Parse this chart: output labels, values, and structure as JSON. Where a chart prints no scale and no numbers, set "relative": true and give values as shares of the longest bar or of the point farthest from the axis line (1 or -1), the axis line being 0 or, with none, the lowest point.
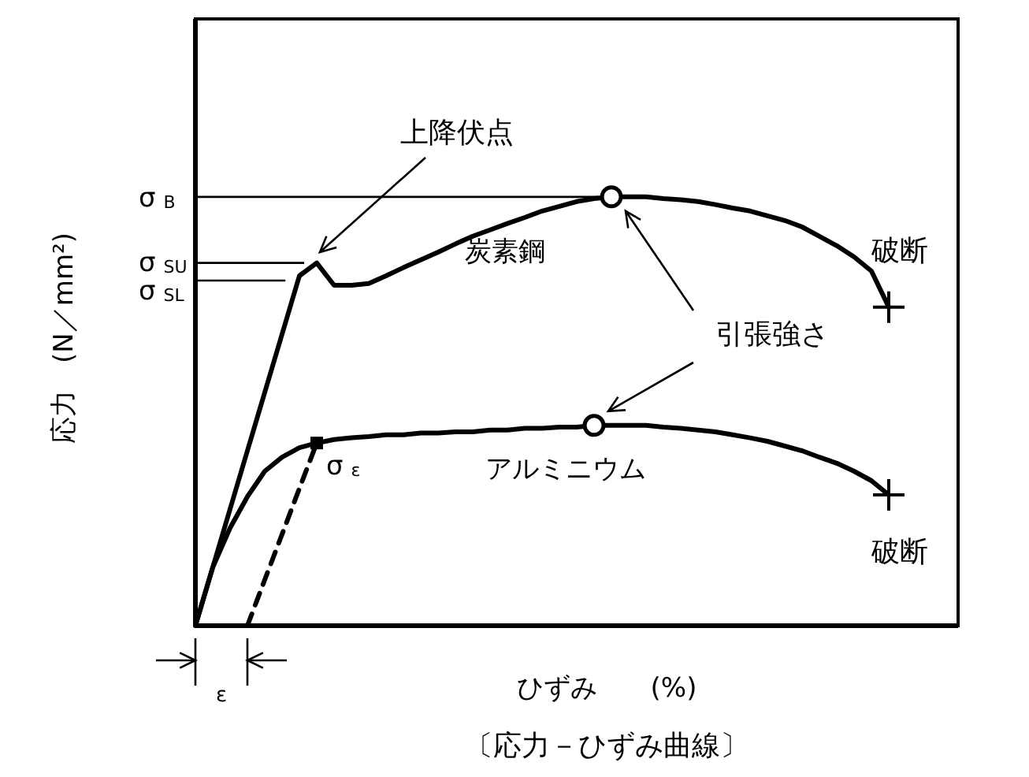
{
  "chart_data": {
    "type": "line",
    "relative": true,
    "title": "〔応力－ひずみ曲線〕",
    "xlabel": "ひずみ　　(%)",
    "ylabel": "応力　(N／mm²)",
    "categories": [
      null,
      null,
      null,
      null,
      null,
      null,
      null,
      null,
      null,
      null,
      null,
      null,
      null,
      null,
      null,
      null,
      null,
      null,
      null,
      null,
      null,
      null,
      null,
      null,
      null,
      null,
      null,
      null,
      null,
      null,
      null,
      null,
      null,
      null,
      null,
      null,
      null,
      null,
      null,
      null,
      null,
      null,
      null,
      null,
      null
    ],
    "series": [
      {
        "name": "炭素鋼",
        "color": "#000000",
        "values": [
          0,
          0.136,
          0.272,
          0.408,
          0.544,
          0.68,
          0.816,
          0.846,
          0.794,
          0.794,
          0.798,
          0.816,
          0.835,
          0.853,
          0.871,
          0.89,
          0.908,
          0.923,
          0.938,
          0.952,
          0.967,
          0.978,
          0.989,
          0.996,
          1,
          1,
          1,
          0.996,
          0.993,
          0.989,
          0.982,
          0.974,
          0.967,
          0.956,
          0.945,
          0.93,
          0.908,
          0.886,
          0.86,
          0.827,
          0.743,
          null,
          null,
          null,
          null
        ]
      },
      {
        "name": "アルミニウム",
        "color": "#000000",
        "values": [
          0,
          0.136,
          0.228,
          0.301,
          0.36,
          0.393,
          0.415,
          0.426,
          0.434,
          0.438,
          0.441,
          0.445,
          0.445,
          0.449,
          0.449,
          0.452,
          0.452,
          0.456,
          0.456,
          0.46,
          0.46,
          0.463,
          0.463,
          0.467,
          0.467,
          0.467,
          0.467,
          0.463,
          0.46,
          0.456,
          0.452,
          0.445,
          0.438,
          0.43,
          0.419,
          0.408,
          0.393,
          0.379,
          0.36,
          0.338,
          0.305,
          null,
          null,
          null,
          null
        ]
      },
      {
        "line_style": "dashed",
        "color": "#000000",
        "values": [
          null,
          null,
          null,
          0,
          0.107,
          0.213,
          0.32,
          0.426,
          null,
          null,
          null,
          null,
          null,
          null,
          null,
          null,
          null,
          null,
          null,
          null,
          null,
          null,
          null,
          null,
          null,
          null,
          null,
          null,
          null,
          null,
          null,
          null,
          null,
          null,
          null,
          null,
          null,
          null,
          null,
          null,
          null,
          null,
          null,
          null,
          null
        ]
      }
    ],
    "ref_lines": [
      {
        "axis": "y",
        "value": 1,
        "label": "σ$_{B}$"
      },
      {
        "axis": "y",
        "value": 0.846,
        "label": "σ$_{SU}$"
      },
      {
        "axis": "y",
        "value": 0.805,
        "label": "σ$_{SL}$"
      }
    ],
    "annotations": [
      "上降伏点",
      "引張強さ",
      "破断",
      "破断",
      "σ$_{ε}$",
      "ε"
    ]
  }
}
